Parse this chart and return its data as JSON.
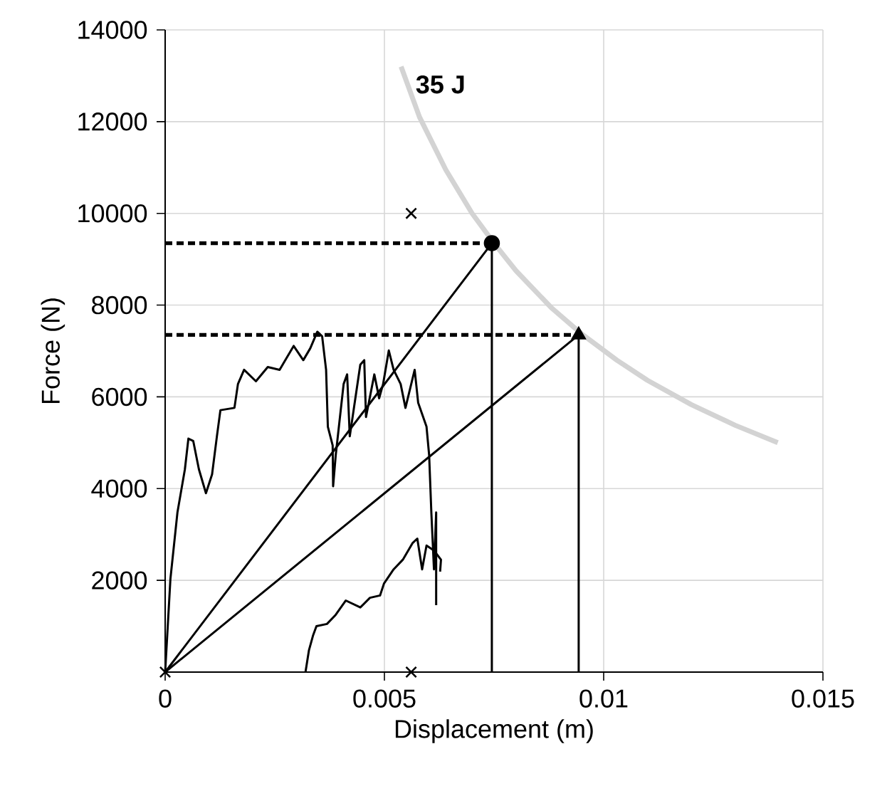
{
  "chart_data": {
    "type": "line",
    "xlabel": "Displacement (m)",
    "ylabel": "Force (N)",
    "xlim": [
      0,
      0.015
    ],
    "ylim": [
      0,
      14000
    ],
    "xticks": [
      0,
      0.005,
      0.01,
      0.015
    ],
    "yticks": [
      2000,
      4000,
      6000,
      8000,
      10000,
      12000,
      14000
    ],
    "grid": true,
    "annotations": [
      "35 J"
    ],
    "series": [
      {
        "color": "#d3d3d3",
        "x": [
          0.00538,
          0.0058,
          0.0064,
          0.007,
          0.0075,
          0.008,
          0.0088,
          0.0095,
          0.0103,
          0.011,
          0.012,
          0.013,
          0.01397
        ],
        "values": [
          13200,
          12100,
          10950,
          10000,
          9350,
          8750,
          7950,
          7370,
          6800,
          6360,
          5830,
          5380,
          5000
        ]
      },
      {
        "color": "#000000",
        "x": [
          0,
          0.00012,
          0.00028,
          0.00045,
          0.00053,
          0.00064,
          0.00077,
          0.00093,
          0.00107,
          0.00118,
          0.00126,
          0.00158,
          0.00166,
          0.0018,
          0.00207,
          0.00234,
          0.00261,
          0.00293,
          0.00315,
          0.00331,
          0.00347,
          0.00358,
          0.00367,
          0.00371,
          0.00382,
          0.00383,
          0.00389,
          0.00407,
          0.00415,
          0.00421,
          0.00445,
          0.00454,
          0.00458,
          0.00477,
          0.00488,
          0.00497,
          0.0051,
          0.00521,
          0.00537,
          0.00548,
          0.00569,
          0.00577,
          0.00596,
          0.00602,
          0.00607,
          0.00613,
          0.00618,
          0.00618
        ],
        "values": [
          0,
          2030,
          3480,
          4420,
          5090,
          5040,
          4420,
          3900,
          4310,
          5140,
          5710,
          5760,
          6280,
          6590,
          6340,
          6650,
          6590,
          7110,
          6800,
          7060,
          7420,
          7320,
          6590,
          5350,
          4940,
          4050,
          4730,
          6280,
          6490,
          5140,
          6700,
          6800,
          5560,
          6490,
          5970,
          6280,
          7010,
          6590,
          6280,
          5760,
          6590,
          5870,
          5350,
          4730,
          3480,
          2240,
          3480,
          1460
        ]
      },
      {
        "color": "#000000",
        "x": [
          0.0032,
          0.00328,
          0.00337,
          0.00345,
          0.00369,
          0.00389,
          0.00412,
          0.00445,
          0.00467,
          0.0049,
          0.00499,
          0.00521,
          0.00542,
          0.00564,
          0.00575,
          0.00586,
          0.00596,
          0.00613,
          0.00629,
          0.00627
        ],
        "values": [
          0,
          480,
          790,
          1000,
          1050,
          1250,
          1560,
          1410,
          1620,
          1670,
          1930,
          2240,
          2450,
          2810,
          2910,
          2240,
          2760,
          2650,
          2450,
          2190
        ]
      },
      {
        "color": "#000000",
        "x": [
          0,
          0.00745,
          0.00745
        ],
        "values": [
          0,
          9350,
          0
        ]
      },
      {
        "color": "#000000",
        "x": [
          0,
          0.00943,
          0.00943
        ],
        "values": [
          0,
          7350,
          0
        ]
      },
      {
        "color": "#000000",
        "line_style": "dashed",
        "x": [
          0,
          0.00745
        ],
        "values": [
          9350,
          9350
        ]
      },
      {
        "color": "#000000",
        "line_style": "dashed",
        "x": [
          0,
          0.00943
        ],
        "values": [
          7350,
          7350
        ]
      },
      {
        "type": "scatter",
        "color": "#000000",
        "marker": "circle",
        "x": [
          0.00745
        ],
        "values": [
          9350
        ]
      },
      {
        "type": "scatter",
        "color": "#000000",
        "marker": "triangle",
        "x": [
          0.00943
        ],
        "values": [
          7350
        ]
      },
      {
        "type": "scatter",
        "color": "#000000",
        "marker": "cross",
        "x": [
          0,
          0.00561,
          0.00561
        ],
        "values": [
          0,
          10000,
          0
        ]
      }
    ]
  }
}
